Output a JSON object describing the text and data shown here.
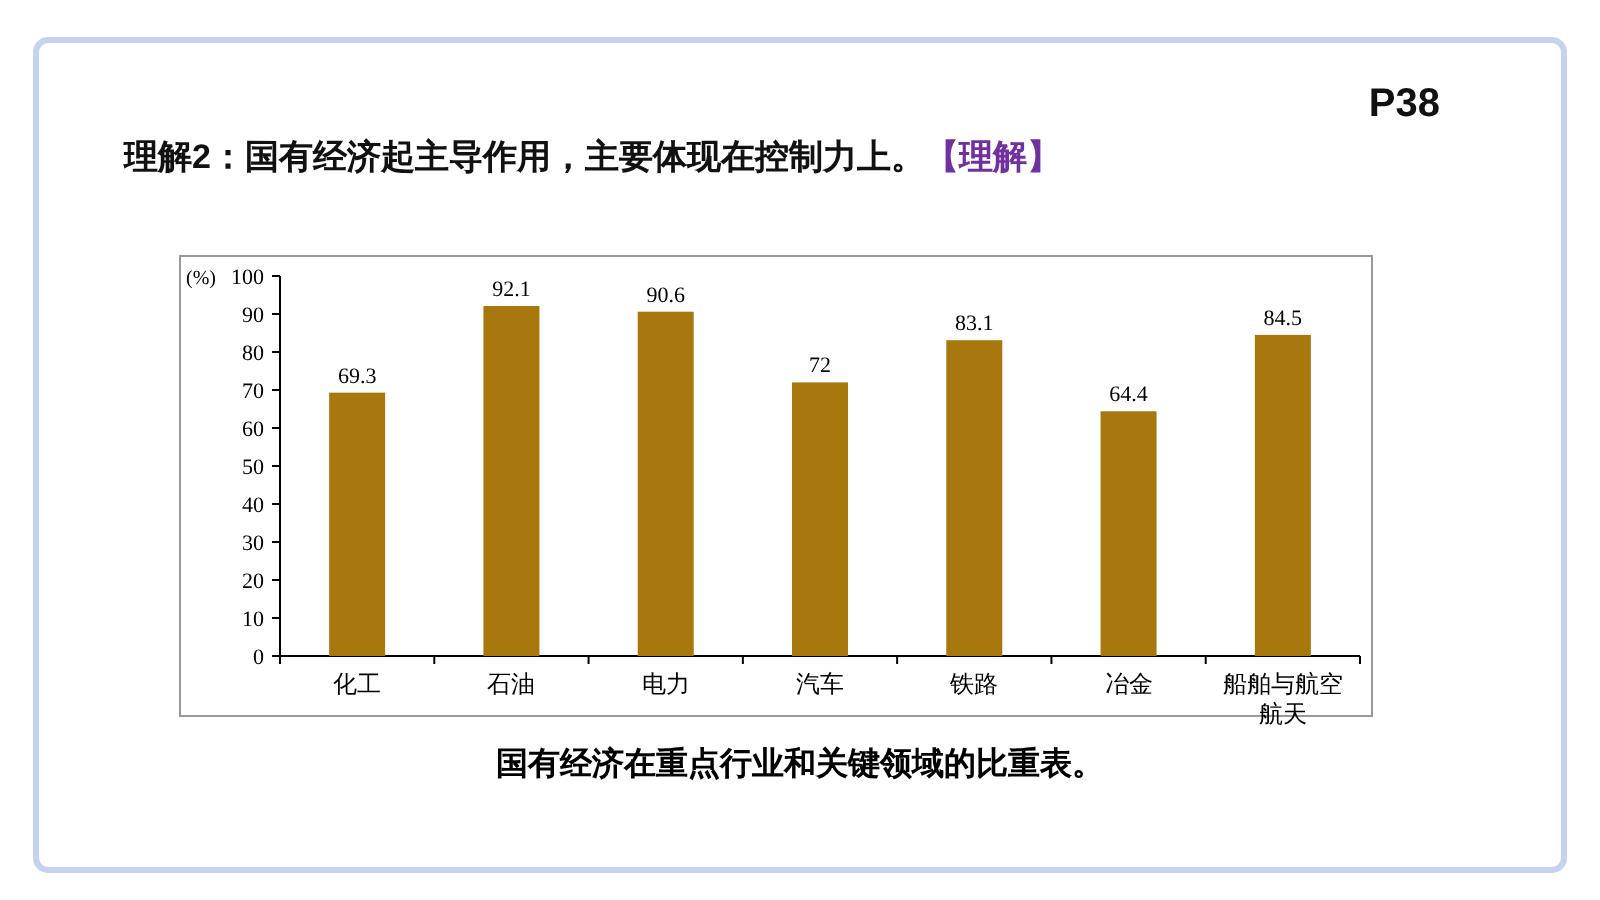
{
  "chart_data": {
    "type": "bar",
    "title": "理解2：国有经济起主导作用，主要体现在控制力上。",
    "annotations": [
      "【理解】",
      "P38"
    ],
    "xlabel": "国有经济在重点行业和关键领域的比重表。",
    "ylabel": "(%)",
    "categories": [
      "化工",
      "石油",
      "电力",
      "汽车",
      "铁路",
      "冶金",
      "船舶与航空航天"
    ],
    "values": [
      69.3,
      92.1,
      90.6,
      72,
      83.1,
      64.4,
      84.5
    ],
    "color": "#a8780e",
    "ylim": [
      0,
      100
    ],
    "yticks": [
      0,
      10,
      20,
      30,
      40,
      50,
      60,
      70,
      80,
      90,
      100
    ],
    "grid": false,
    "data_labels": true
  }
}
